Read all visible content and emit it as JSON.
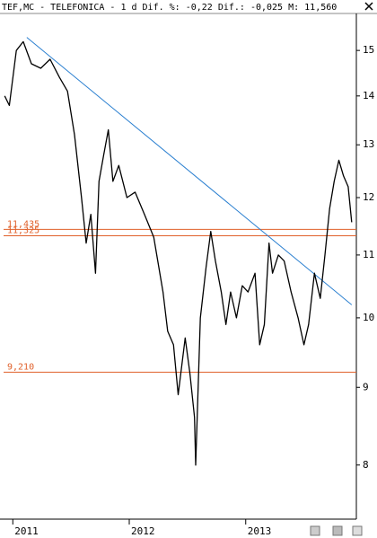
{
  "chart_data": {
    "type": "line",
    "title": "TEF,MC - TELEFONICA -  1 d Dif. %: -0,22 Dif.: -0,025 M: 11,560",
    "log_y": true,
    "xlim": [
      2010.89,
      2013.95
    ],
    "xticks": [
      2011,
      2012,
      2013
    ],
    "ylim": [
      7.4,
      15.8
    ],
    "yticks": [
      8,
      9,
      10,
      11,
      12,
      13,
      14,
      15
    ],
    "series": [
      {
        "color": "#000000",
        "x": [
          2010.93,
          2010.97,
          2011.03,
          2011.09,
          2011.16,
          2011.24,
          2011.32,
          2011.4,
          2011.47,
          2011.53,
          2011.59,
          2011.63,
          2011.67,
          2011.71,
          2011.74,
          2011.78,
          2011.82,
          2011.86,
          2011.91,
          2011.98,
          2012.05,
          2012.13,
          2012.21,
          2012.29,
          2012.33,
          2012.38,
          2012.42,
          2012.48,
          2012.52,
          2012.56,
          2012.57,
          2012.61,
          2012.66,
          2012.7,
          2012.74,
          2012.79,
          2012.83,
          2012.87,
          2012.92,
          2012.97,
          2013.02,
          2013.08,
          2013.12,
          2013.16,
          2013.2,
          2013.23,
          2013.28,
          2013.33,
          2013.39,
          2013.45,
          2013.5,
          2013.54,
          2013.59,
          2013.64,
          2013.68,
          2013.72,
          2013.76,
          2013.8,
          2013.84,
          2013.88,
          2013.91
        ],
        "values": [
          14.0,
          13.8,
          15.0,
          15.2,
          14.7,
          14.6,
          14.8,
          14.4,
          14.1,
          13.2,
          12.0,
          11.2,
          11.7,
          10.7,
          12.3,
          12.8,
          13.3,
          12.3,
          12.6,
          12.0,
          12.1,
          11.7,
          11.3,
          10.4,
          9.8,
          9.6,
          8.9,
          9.7,
          9.2,
          8.6,
          8.0,
          10.0,
          10.8,
          11.4,
          10.9,
          10.4,
          9.9,
          10.4,
          10.0,
          10.5,
          10.4,
          10.7,
          9.6,
          9.9,
          11.2,
          10.7,
          11.0,
          10.9,
          10.4,
          10.0,
          9.6,
          9.9,
          10.7,
          10.3,
          11.0,
          11.8,
          12.3,
          12.7,
          12.4,
          12.2,
          11.56
        ]
      }
    ],
    "hlines": {
      "color": "#e0602a",
      "values": [
        11.435,
        11.325,
        9.21
      ],
      "value_labels": [
        "11,435",
        "11,325",
        "9,210"
      ]
    },
    "trendline": {
      "color": "#2a7fd0",
      "x": [
        2011.12,
        2013.91
      ],
      "values": [
        15.3,
        10.2
      ]
    }
  }
}
